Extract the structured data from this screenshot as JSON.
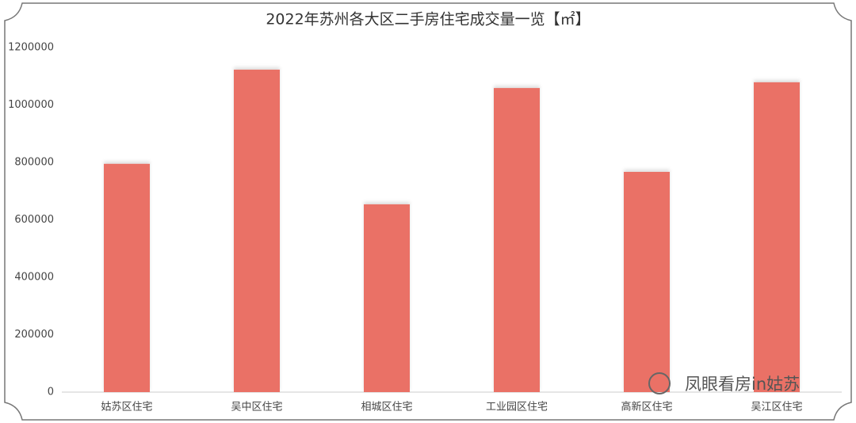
{
  "chart_data": {
    "type": "bar",
    "title": "2022年苏州各大区二手房住宅成交量一览【㎡】",
    "categories": [
      "姑苏区住宅",
      "吴中区住宅",
      "相城区住宅",
      "工业园区住宅",
      "高新区住宅",
      "吴江区住宅"
    ],
    "values": [
      795000,
      1123000,
      654000,
      1059000,
      767000,
      1079000
    ],
    "color": "#ea7166",
    "ylim": [
      0,
      1200000
    ],
    "yticks": [
      0,
      200000,
      400000,
      600000,
      800000,
      1000000,
      1200000
    ],
    "grid": false
  },
  "watermark": "凤眼看房in姑苏"
}
